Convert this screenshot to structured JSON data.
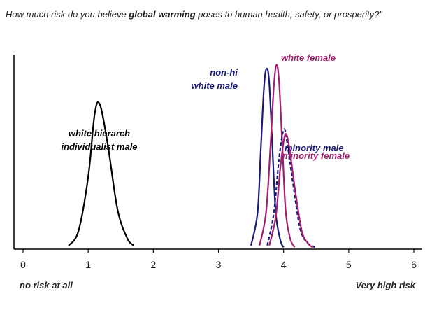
{
  "question": {
    "pre": "How much risk do you believe ",
    "bold": "global warming",
    "post": " poses to human health, safety, or prosperity?”"
  },
  "chart_data": {
    "type": "line",
    "xlim": [
      0,
      6
    ],
    "ticks": [
      0,
      1,
      2,
      3,
      4,
      5,
      6
    ],
    "x_end_labels": {
      "left": "no risk at all",
      "right": "Very high risk"
    },
    "grid": false,
    "series": [
      {
        "name": "white hierarch individualist male",
        "label_lines": [
          "white hierarch",
          "individualist male"
        ],
        "color": "#000000",
        "x": [
          0.7,
          0.85,
          1.0,
          1.1,
          1.18,
          1.3,
          1.45,
          1.6,
          1.7
        ],
        "y": [
          0.02,
          0.1,
          0.4,
          0.75,
          0.8,
          0.58,
          0.22,
          0.06,
          0.02
        ]
      },
      {
        "name": "non-hi white male",
        "label_lines": [
          "non-hi",
          "white male"
        ],
        "color": "#1a1a7a",
        "x": [
          3.5,
          3.6,
          3.65,
          3.7,
          3.74,
          3.78,
          3.83,
          3.88,
          3.95,
          4.0
        ],
        "y": [
          0.02,
          0.2,
          0.55,
          0.9,
          1.0,
          0.92,
          0.55,
          0.2,
          0.05,
          0.01
        ]
      },
      {
        "name": "white female",
        "label_lines": [
          "white female"
        ],
        "color": "#a0206e",
        "x": [
          3.63,
          3.73,
          3.8,
          3.85,
          3.89,
          3.93,
          3.98,
          4.03,
          4.1,
          4.17
        ],
        "y": [
          0.02,
          0.2,
          0.58,
          0.9,
          1.02,
          0.93,
          0.58,
          0.22,
          0.06,
          0.01
        ]
      },
      {
        "name": "minority male",
        "label_lines": [
          "minority male"
        ],
        "color": "#1a1a7a",
        "x": [
          3.75,
          3.85,
          3.93,
          4.0,
          4.05,
          4.15,
          4.25,
          4.35,
          4.48
        ],
        "y": [
          0.02,
          0.2,
          0.5,
          0.66,
          0.6,
          0.35,
          0.12,
          0.04,
          0.01
        ]
      },
      {
        "name": "minority female",
        "label_lines": [
          "minority female"
        ],
        "color": "#a0206e",
        "x": [
          3.78,
          3.88,
          3.95,
          4.02,
          4.08,
          4.18,
          4.28,
          4.38,
          4.45
        ],
        "y": [
          0.02,
          0.18,
          0.45,
          0.63,
          0.58,
          0.32,
          0.1,
          0.03,
          0.01
        ]
      }
    ]
  }
}
